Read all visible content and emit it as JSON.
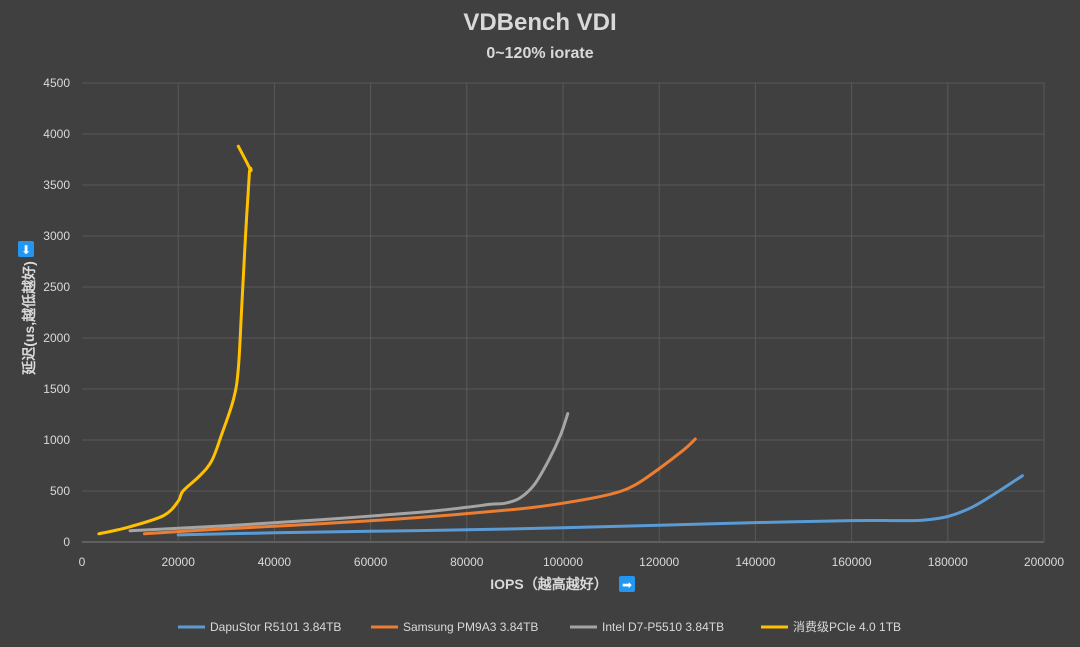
{
  "chart_data": {
    "type": "line",
    "title": "VDBench VDI",
    "subtitle": "0~120% iorate",
    "xlabel": "IOPS（越高越好）",
    "ylabel": "延迟(us,越低越好)",
    "x_arrow": "➡",
    "y_arrow": "⬇",
    "xlim": [
      0,
      200000
    ],
    "ylim": [
      0,
      4500
    ],
    "x_ticks": [
      0,
      20000,
      40000,
      60000,
      80000,
      100000,
      120000,
      140000,
      160000,
      180000,
      200000
    ],
    "y_ticks": [
      0,
      500,
      1000,
      1500,
      2000,
      2500,
      3000,
      3500,
      4000,
      4500
    ],
    "grid": true,
    "legend_position": "bottom",
    "series": [
      {
        "name": "DapuStor R5101 3.84TB",
        "color": "#5b9bd5",
        "points": [
          [
            20000,
            70
          ],
          [
            40000,
            90
          ],
          [
            60000,
            105
          ],
          [
            80000,
            120
          ],
          [
            100000,
            140
          ],
          [
            120000,
            165
          ],
          [
            140000,
            190
          ],
          [
            160000,
            210
          ],
          [
            170000,
            210
          ],
          [
            175000,
            215
          ],
          [
            180000,
            250
          ],
          [
            185000,
            340
          ],
          [
            190000,
            480
          ],
          [
            195500,
            650
          ]
        ]
      },
      {
        "name": "Samsung PM9A3 3.84TB",
        "color": "#ed7d31",
        "points": [
          [
            13000,
            80
          ],
          [
            30000,
            130
          ],
          [
            50000,
            180
          ],
          [
            70000,
            240
          ],
          [
            90000,
            320
          ],
          [
            100000,
            380
          ],
          [
            110000,
            470
          ],
          [
            115000,
            560
          ],
          [
            120000,
            720
          ],
          [
            125000,
            900
          ],
          [
            127500,
            1010
          ]
        ]
      },
      {
        "name": "Intel D7-P5510 3.84TB",
        "color": "#a5a5a5",
        "points": [
          [
            10000,
            110
          ],
          [
            30000,
            160
          ],
          [
            50000,
            220
          ],
          [
            70000,
            290
          ],
          [
            80000,
            340
          ],
          [
            85000,
            370
          ],
          [
            88000,
            380
          ],
          [
            91000,
            430
          ],
          [
            94000,
            560
          ],
          [
            97000,
            800
          ],
          [
            99500,
            1050
          ],
          [
            101000,
            1260
          ]
        ]
      },
      {
        "name": "消费级PCIe 4.0 1TB",
        "color": "#ffc000",
        "points": [
          [
            3500,
            80
          ],
          [
            10000,
            150
          ],
          [
            17000,
            260
          ],
          [
            20000,
            400
          ],
          [
            21000,
            500
          ],
          [
            24500,
            650
          ],
          [
            27000,
            800
          ],
          [
            29000,
            1050
          ],
          [
            31500,
            1400
          ],
          [
            32500,
            1700
          ],
          [
            33200,
            2300
          ],
          [
            34000,
            3000
          ],
          [
            34800,
            3620
          ],
          [
            35000,
            3650
          ],
          [
            32500,
            3880
          ]
        ]
      }
    ]
  }
}
